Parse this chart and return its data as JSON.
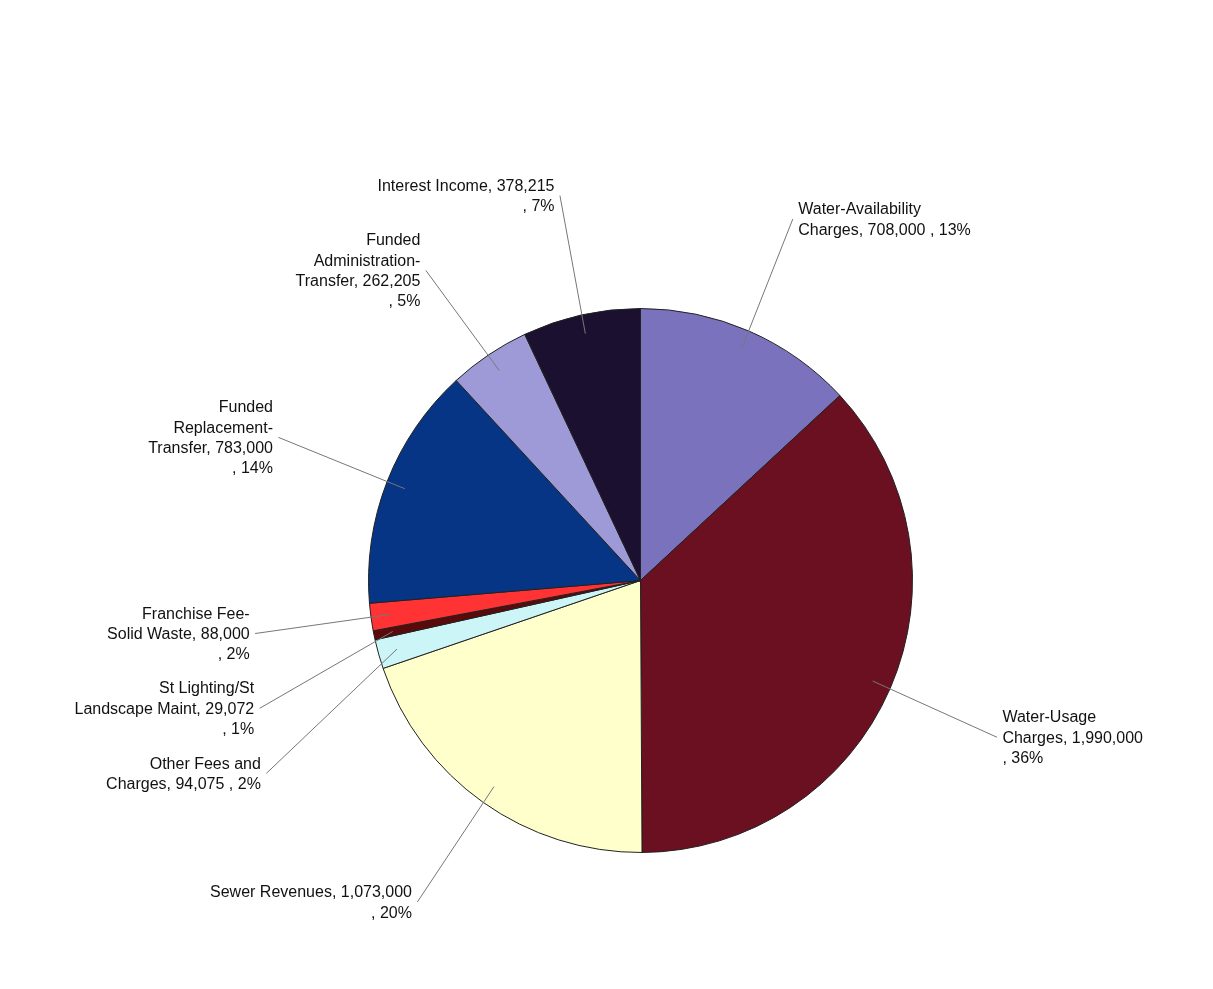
{
  "chart_data": {
    "type": "pie",
    "categories": [
      "Water-Availability Charges",
      "Water-Usage Charges",
      "Sewer Revenues",
      "Other Fees and Charges",
      "St Lighting/St Landscape Maint",
      "Franchise Fee-Solid Waste",
      "Funded Replacement-Transfer",
      "Funded Administration-Transfer",
      "Interest Income"
    ],
    "values": [
      708000,
      1990000,
      1073000,
      94075,
      29072,
      88000,
      783000,
      262205,
      378215
    ],
    "value_labels": [
      "708,000 , 13%",
      "1,990,000 , 36%",
      "1,073,000 , 20%",
      "94,075 , 2%",
      "29,072 , 1%",
      "88,000 , 2%",
      "783,000 , 14%",
      "262,205 , 5%",
      "378,215 , 7%"
    ],
    "colors": [
      "#7b72bd",
      "#6b1020",
      "#ffffcc",
      "#ccf5f8",
      "#5a0a0a",
      "#ff3333",
      "#053584",
      "#9e9ad8",
      "#1c1030"
    ]
  }
}
